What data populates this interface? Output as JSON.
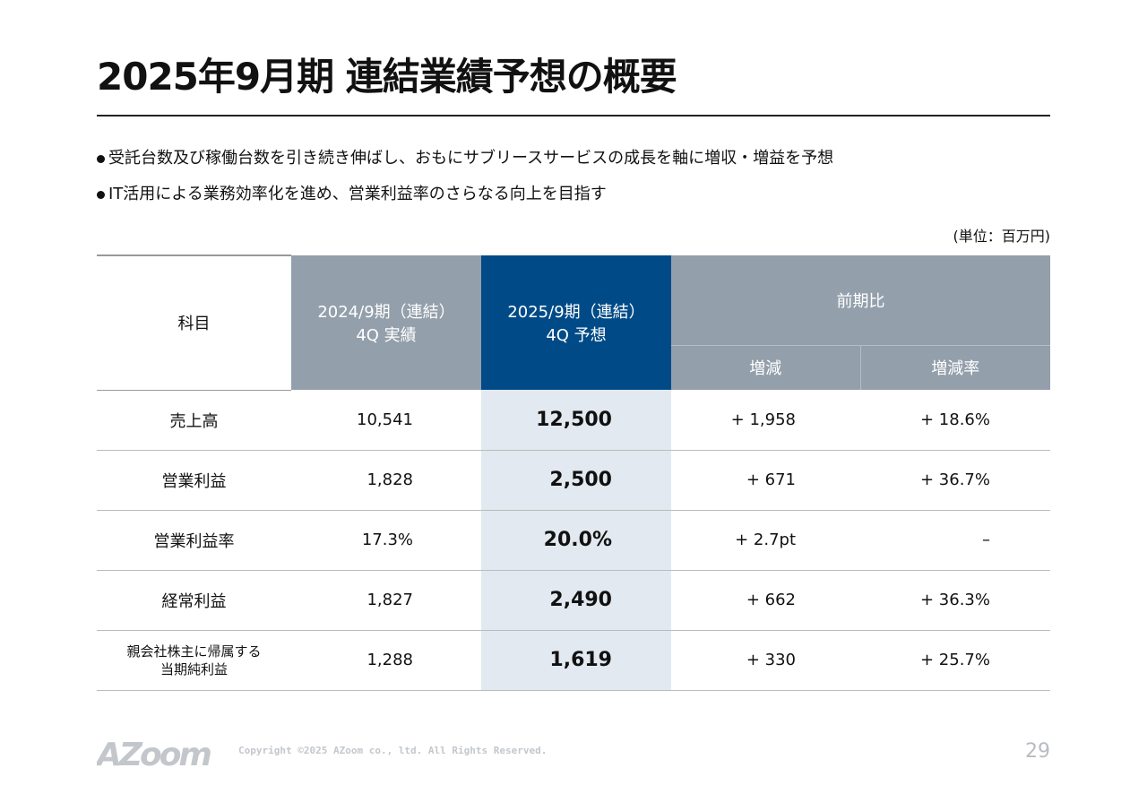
{
  "title": "2025年9月期 連結業績予想の概要",
  "bullets": [
    "受託台数及び稼働台数を引き続き伸ばし、おもにサブリースサービスの成長を軸に増収・増益を予想",
    "IT活用による業務効率化を進め、営業利益率のさらなる向上を目指す"
  ],
  "unit": "(単位：百万円)",
  "table": {
    "headers": {
      "item": "科目",
      "prior_line1": "2024/9期（連結）",
      "prior_line2": "4Q 実績",
      "forecast_line1": "2025/9期（連結）",
      "forecast_line2": "4Q 予想",
      "comparison": "前期比",
      "change": "増減",
      "change_rate": "増減率"
    },
    "rows": [
      {
        "item": "売上高",
        "item2": "",
        "prior": "10,541",
        "forecast": "12,500",
        "change": "+ 1,958",
        "rate": "+ 18.6%"
      },
      {
        "item": "営業利益",
        "item2": "",
        "prior": "1,828",
        "forecast": "2,500",
        "change": "+ 671",
        "rate": "+ 36.7%"
      },
      {
        "item": "営業利益率",
        "item2": "",
        "prior": "17.3%",
        "forecast": "20.0%",
        "change": "+ 2.7pt",
        "rate": "–"
      },
      {
        "item": "経常利益",
        "item2": "",
        "prior": "1,827",
        "forecast": "2,490",
        "change": "+ 662",
        "rate": "+ 36.3%"
      },
      {
        "item": "親会社株主に帰属する",
        "item2": "当期純利益",
        "prior": "1,288",
        "forecast": "1,619",
        "change": "+ 330",
        "rate": "+ 25.7%"
      }
    ]
  },
  "footer": {
    "logo": "AZoom",
    "copyright": "Copyright ©2025 AZoom co., ltd. All Rights Reserved.",
    "page": "29"
  },
  "colors": {
    "header_gray": "#939fab",
    "header_blue": "#004b87",
    "forecast_bg": "#e2e9f0"
  }
}
